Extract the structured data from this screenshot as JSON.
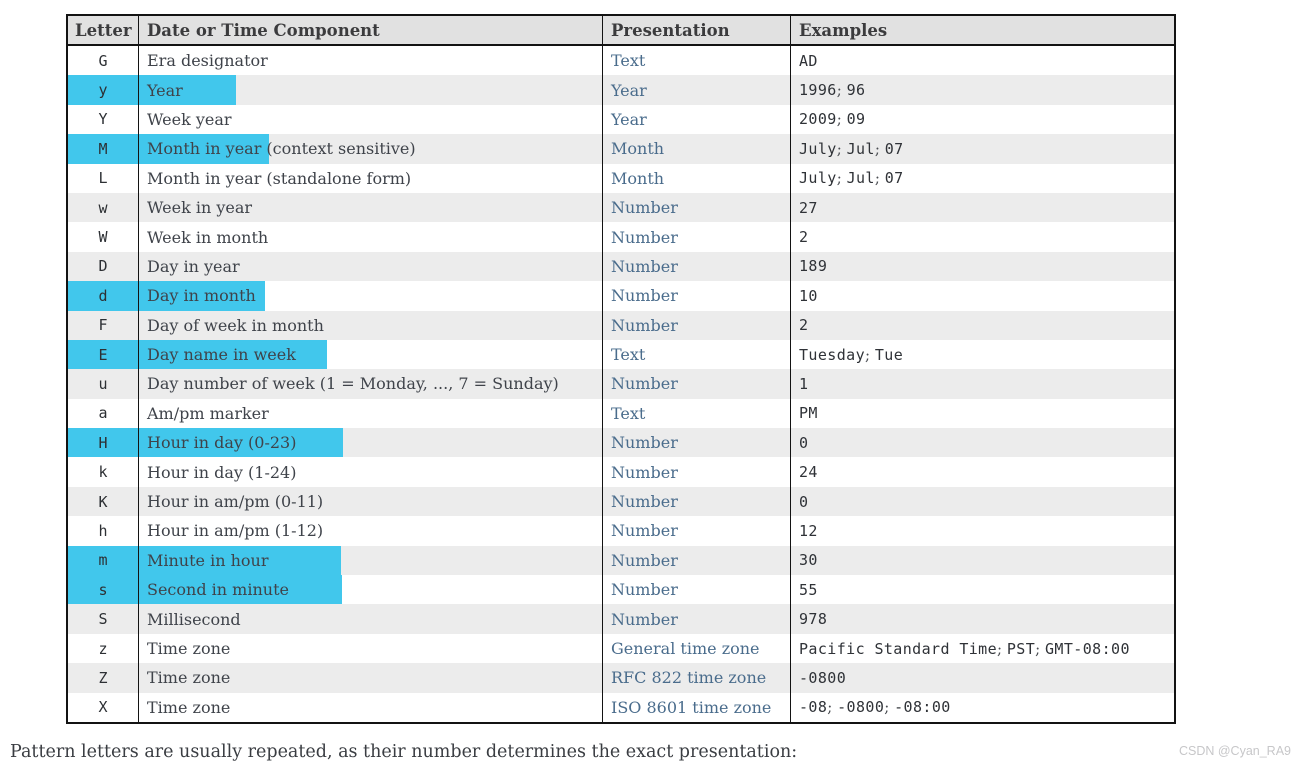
{
  "colors": {
    "highlight": "#41c7ec",
    "header_bg": "#e1e1e1",
    "alt_row_bg": "#ececec",
    "border": "#131313",
    "presentation_link": "#4a6c8c"
  },
  "table": {
    "headers": [
      "Letter",
      "Date or Time Component",
      "Presentation",
      "Examples"
    ],
    "rows": [
      {
        "letter": "G",
        "component": "Era designator",
        "presentation": "Text",
        "examples": [
          "AD"
        ],
        "highlight_width": null
      },
      {
        "letter": "y",
        "component": "Year",
        "presentation": "Year",
        "examples": [
          "1996",
          "96"
        ],
        "highlight_width": 97
      },
      {
        "letter": "Y",
        "component": "Week year",
        "presentation": "Year",
        "examples": [
          "2009",
          "09"
        ],
        "highlight_width": null
      },
      {
        "letter": "M",
        "component": "Month in year (context sensitive)",
        "presentation": "Month",
        "examples": [
          "July",
          "Jul",
          "07"
        ],
        "highlight_width": 130
      },
      {
        "letter": "L",
        "component": "Month in year (standalone form)",
        "presentation": "Month",
        "examples": [
          "July",
          "Jul",
          "07"
        ],
        "highlight_width": null
      },
      {
        "letter": "w",
        "component": "Week in year",
        "presentation": "Number",
        "examples": [
          "27"
        ],
        "highlight_width": null
      },
      {
        "letter": "W",
        "component": "Week in month",
        "presentation": "Number",
        "examples": [
          "2"
        ],
        "highlight_width": null
      },
      {
        "letter": "D",
        "component": "Day in year",
        "presentation": "Number",
        "examples": [
          "189"
        ],
        "highlight_width": null
      },
      {
        "letter": "d",
        "component": "Day in month",
        "presentation": "Number",
        "examples": [
          "10"
        ],
        "highlight_width": 126
      },
      {
        "letter": "F",
        "component": "Day of week in month",
        "presentation": "Number",
        "examples": [
          "2"
        ],
        "highlight_width": null
      },
      {
        "letter": "E",
        "component": "Day name in week",
        "presentation": "Text",
        "examples": [
          "Tuesday",
          "Tue"
        ],
        "highlight_width": 188
      },
      {
        "letter": "u",
        "component": "Day number of week (1 = Monday, ..., 7 = Sunday)",
        "presentation": "Number",
        "examples": [
          "1"
        ],
        "highlight_width": null
      },
      {
        "letter": "a",
        "component": "Am/pm marker",
        "presentation": "Text",
        "examples": [
          "PM"
        ],
        "highlight_width": null
      },
      {
        "letter": "H",
        "component": "Hour in day (0-23)",
        "presentation": "Number",
        "examples": [
          "0"
        ],
        "highlight_width": 204
      },
      {
        "letter": "k",
        "component": "Hour in day (1-24)",
        "presentation": "Number",
        "examples": [
          "24"
        ],
        "highlight_width": null
      },
      {
        "letter": "K",
        "component": "Hour in am/pm (0-11)",
        "presentation": "Number",
        "examples": [
          "0"
        ],
        "highlight_width": null
      },
      {
        "letter": "h",
        "component": "Hour in am/pm (1-12)",
        "presentation": "Number",
        "examples": [
          "12"
        ],
        "highlight_width": null
      },
      {
        "letter": "m",
        "component": "Minute in hour",
        "presentation": "Number",
        "examples": [
          "30"
        ],
        "highlight_width": 202
      },
      {
        "letter": "s",
        "component": "Second in minute",
        "presentation": "Number",
        "examples": [
          "55"
        ],
        "highlight_width": 203
      },
      {
        "letter": "S",
        "component": "Millisecond",
        "presentation": "Number",
        "examples": [
          "978"
        ],
        "highlight_width": null
      },
      {
        "letter": "z",
        "component": "Time zone",
        "presentation": "General time zone",
        "examples": [
          "Pacific Standard Time",
          "PST",
          "GMT-08:00"
        ],
        "highlight_width": null
      },
      {
        "letter": "Z",
        "component": "Time zone",
        "presentation": "RFC 822 time zone",
        "examples": [
          "-0800"
        ],
        "highlight_width": null
      },
      {
        "letter": "X",
        "component": "Time zone",
        "presentation": "ISO 8601 time zone",
        "examples": [
          "-08",
          "-0800",
          "-08:00"
        ],
        "highlight_width": null
      }
    ]
  },
  "footer": {
    "note": "Pattern letters are usually repeated, as their number determines the exact presentation:"
  },
  "watermark": {
    "text": "CSDN @Cyan_RA9"
  }
}
